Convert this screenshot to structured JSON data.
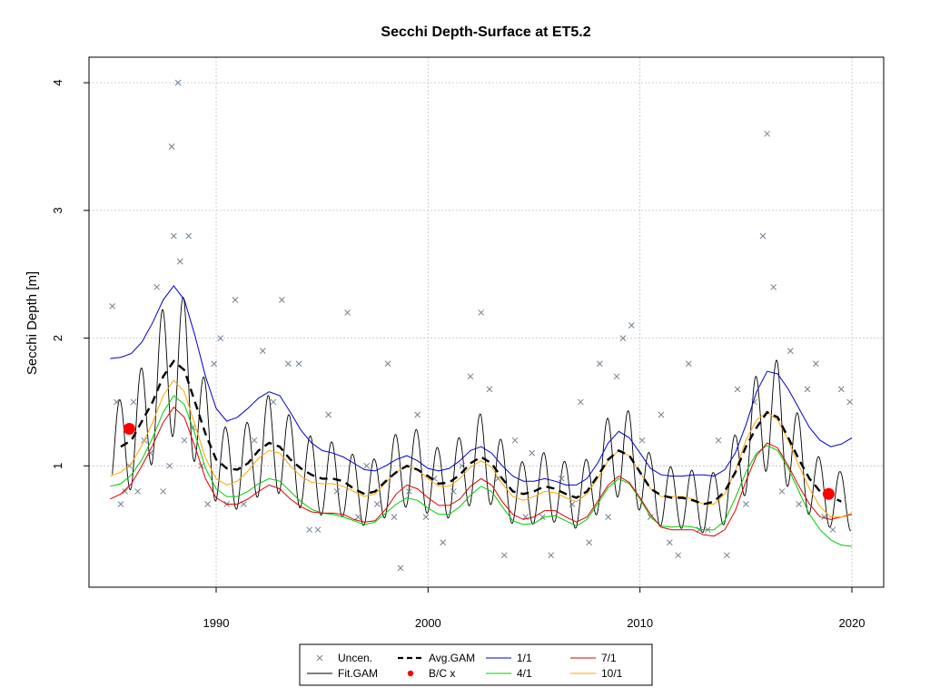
{
  "chart_data": {
    "type": "line",
    "title": "Secchi Depth-Surface at ET5.2",
    "xlabel": "",
    "ylabel": "Secchi Depth [m]",
    "xlim": [
      1984.0,
      2021.5
    ],
    "ylim": [
      0.05,
      4.2
    ],
    "xticks": [
      1990,
      2000,
      2010,
      2020
    ],
    "yticks": [
      1,
      2,
      3,
      4
    ],
    "grid": true,
    "legend_position": "bottom",
    "colors": {
      "uncen": "#708090",
      "fit": "#000000",
      "avg": "#000000",
      "bc": "#ff0000",
      "s1_1": "#0000cc",
      "s4_1": "#00cc00",
      "s7_1": "#dd0000",
      "s10_1": "#ffa500",
      "grid": "#c0c0c0"
    },
    "legend": [
      {
        "key": "uncen",
        "label": "Uncen."
      },
      {
        "key": "avg",
        "label": "Avg.GAM"
      },
      {
        "key": "s1_1",
        "label": "1/1"
      },
      {
        "key": "s7_1",
        "label": "7/1"
      },
      {
        "key": "fit",
        "label": "Fit.GAM"
      },
      {
        "key": "bc",
        "label": "B/C x"
      },
      {
        "key": "s4_1",
        "label": "4/1"
      },
      {
        "key": "s10_1",
        "label": "10/1"
      }
    ],
    "observations": {
      "name": "Uncen.",
      "x": [
        1985.1,
        1985.3,
        1985.5,
        1985.7,
        1985.9,
        1986.1,
        1986.3,
        1986.6,
        1986.9,
        1987.2,
        1987.5,
        1987.8,
        1988.0,
        1988.2,
        1988.5,
        1988.7,
        1988.9,
        1989.3,
        1989.6,
        1989.9,
        1990.2,
        1990.5,
        1990.9,
        1991.3,
        1991.8,
        1992.2,
        1992.7,
        1993.1,
        1993.4,
        1993.9,
        1994.4,
        1994.8,
        1995.3,
        1995.7,
        1996.2,
        1996.7,
        1997.1,
        1997.6,
        1998.1,
        1998.4,
        1998.7,
        1999.1,
        1999.5,
        1999.9,
        2000.3,
        2000.7,
        2001.2,
        2001.6,
        2002.0,
        2002.5,
        2002.9,
        2003.3,
        2003.6,
        2004.1,
        2004.6,
        2004.9,
        2005.4,
        2005.8,
        2006.3,
        2006.8,
        2007.2,
        2007.6,
        2008.1,
        2008.5,
        2008.9,
        2009.2,
        2009.6,
        2010.1,
        2010.5,
        2011.0,
        2011.4,
        2011.8,
        2012.3,
        2012.8,
        2013.2,
        2013.7,
        2014.1,
        2014.6,
        2015.0,
        2015.4,
        2015.8,
        2016.0,
        2016.3,
        2016.7,
        2017.1,
        2017.5,
        2017.9,
        2018.3,
        2018.7,
        2019.1,
        2019.5,
        2019.9
      ],
      "y": [
        2.25,
        1.5,
        0.7,
        0.8,
        1.0,
        1.5,
        0.8,
        1.2,
        1.1,
        2.4,
        0.8,
        1.0,
        2.8,
        4.0,
        1.2,
        2.8,
        1.3,
        1.0,
        0.7,
        1.8,
        2.0,
        0.7,
        2.3,
        0.7,
        1.2,
        1.9,
        1.5,
        2.3,
        1.8,
        1.8,
        0.5,
        0.5,
        1.4,
        0.8,
        2.2,
        0.6,
        1.0,
        0.7,
        1.8,
        0.6,
        0.2,
        0.8,
        1.4,
        0.6,
        0.9,
        0.4,
        0.8,
        1.0,
        1.7,
        2.2,
        1.6,
        0.9,
        0.3,
        1.2,
        0.6,
        1.1,
        0.6,
        0.3,
        0.9,
        0.7,
        1.5,
        0.4,
        1.8,
        0.6,
        1.7,
        2.0,
        2.1,
        1.2,
        0.6,
        1.4,
        0.4,
        0.3,
        1.8,
        0.5,
        0.5,
        1.2,
        0.3,
        1.6,
        0.7,
        1.5,
        2.8,
        3.6,
        2.4,
        0.8,
        1.9,
        0.7,
        1.6,
        1.8,
        0.6,
        0.5,
        1.6,
        1.5
      ]
    },
    "extra_high_obs": [
      {
        "x": 1987.9,
        "y": 3.5
      },
      {
        "x": 1988.3,
        "y": 2.6
      }
    ],
    "avg_gam": {
      "name": "Avg.GAM",
      "x": [
        1985.5,
        1986.0,
        1986.5,
        1987.0,
        1987.5,
        1988.0,
        1988.5,
        1989.0,
        1989.5,
        1990.0,
        1990.5,
        1991.0,
        1991.5,
        1992.0,
        1992.5,
        1993.0,
        1993.5,
        1994.0,
        1994.5,
        1995.0,
        1995.5,
        1996.0,
        1996.5,
        1997.0,
        1997.5,
        1998.0,
        1998.5,
        1999.0,
        1999.5,
        2000.0,
        2000.5,
        2001.0,
        2001.5,
        2002.0,
        2002.5,
        2003.0,
        2003.5,
        2004.0,
        2004.5,
        2005.0,
        2005.5,
        2006.0,
        2006.5,
        2007.0,
        2007.5,
        2008.0,
        2008.5,
        2009.0,
        2009.5,
        2010.0,
        2010.5,
        2011.0,
        2011.5,
        2012.0,
        2012.5,
        2013.0,
        2013.5,
        2014.0,
        2014.5,
        2015.0,
        2015.5,
        2016.0,
        2016.5,
        2017.0,
        2017.5,
        2018.0,
        2018.5,
        2019.0,
        2019.5
      ],
      "y": [
        1.15,
        1.2,
        1.35,
        1.5,
        1.7,
        1.82,
        1.75,
        1.5,
        1.25,
        1.05,
        0.98,
        0.97,
        1.02,
        1.12,
        1.18,
        1.15,
        1.05,
        0.98,
        0.93,
        0.9,
        0.9,
        0.88,
        0.82,
        0.78,
        0.8,
        0.88,
        0.95,
        1.0,
        0.97,
        0.92,
        0.86,
        0.87,
        0.93,
        1.02,
        1.07,
        1.02,
        0.9,
        0.8,
        0.78,
        0.8,
        0.84,
        0.82,
        0.78,
        0.75,
        0.8,
        0.92,
        1.05,
        1.12,
        1.08,
        0.95,
        0.82,
        0.77,
        0.75,
        0.75,
        0.73,
        0.7,
        0.72,
        0.8,
        0.95,
        1.15,
        1.3,
        1.42,
        1.38,
        1.22,
        1.05,
        0.9,
        0.8,
        0.76,
        0.72
      ]
    },
    "bc_points": {
      "name": "B/C x",
      "x": [
        1985.9,
        2018.9
      ],
      "y": [
        1.29,
        0.78
      ]
    },
    "series": [
      {
        "key": "s1_1",
        "name": "1/1",
        "x": [
          1985.0,
          1985.5,
          1986.0,
          1986.5,
          1987.0,
          1987.5,
          1988.0,
          1988.5,
          1989.0,
          1989.5,
          1990.0,
          1990.5,
          1991.0,
          1991.5,
          1992.0,
          1992.5,
          1993.0,
          1993.5,
          1994.0,
          1994.5,
          1995.0,
          1995.5,
          1996.0,
          1996.5,
          1997.0,
          1997.5,
          1998.0,
          1998.5,
          1999.0,
          1999.5,
          2000.0,
          2000.5,
          2001.0,
          2001.5,
          2002.0,
          2002.5,
          2003.0,
          2003.5,
          2004.0,
          2004.5,
          2005.0,
          2005.5,
          2006.0,
          2006.5,
          2007.0,
          2007.5,
          2008.0,
          2008.5,
          2009.0,
          2009.5,
          2010.0,
          2010.5,
          2011.0,
          2011.5,
          2012.0,
          2012.5,
          2013.0,
          2013.5,
          2014.0,
          2014.5,
          2015.0,
          2015.5,
          2016.0,
          2016.5,
          2017.0,
          2017.5,
          2018.0,
          2018.5,
          2019.0,
          2019.5,
          2020.0
        ],
        "y": [
          1.84,
          1.85,
          1.88,
          1.97,
          2.12,
          2.3,
          2.41,
          2.3,
          2.02,
          1.7,
          1.45,
          1.35,
          1.38,
          1.45,
          1.53,
          1.58,
          1.55,
          1.42,
          1.28,
          1.18,
          1.12,
          1.1,
          1.07,
          1.02,
          0.97,
          0.96,
          1.0,
          1.05,
          1.08,
          1.04,
          0.98,
          0.96,
          0.98,
          1.04,
          1.12,
          1.15,
          1.1,
          1.0,
          0.92,
          0.88,
          0.88,
          0.9,
          0.88,
          0.85,
          0.85,
          0.9,
          1.02,
          1.18,
          1.27,
          1.22,
          1.1,
          0.98,
          0.93,
          0.92,
          0.92,
          0.93,
          0.93,
          0.92,
          0.97,
          1.1,
          1.32,
          1.58,
          1.74,
          1.72,
          1.6,
          1.45,
          1.3,
          1.2,
          1.15,
          1.17,
          1.22
        ]
      },
      {
        "key": "s4_1",
        "name": "4/1",
        "x": [
          1985.0,
          1985.5,
          1986.0,
          1986.5,
          1987.0,
          1987.5,
          1988.0,
          1988.5,
          1989.0,
          1989.5,
          1990.0,
          1990.5,
          1991.0,
          1991.5,
          1992.0,
          1992.5,
          1993.0,
          1993.5,
          1994.0,
          1994.5,
          1995.0,
          1995.5,
          1996.0,
          1996.5,
          1997.0,
          1997.5,
          1998.0,
          1998.5,
          1999.0,
          1999.5,
          2000.0,
          2000.5,
          2001.0,
          2001.5,
          2002.0,
          2002.5,
          2003.0,
          2003.5,
          2004.0,
          2004.5,
          2005.0,
          2005.5,
          2006.0,
          2006.5,
          2007.0,
          2007.5,
          2008.0,
          2008.5,
          2009.0,
          2009.5,
          2010.0,
          2010.5,
          2011.0,
          2011.5,
          2012.0,
          2012.5,
          2013.0,
          2013.5,
          2014.0,
          2014.5,
          2015.0,
          2015.5,
          2016.0,
          2016.5,
          2017.0,
          2017.5,
          2018.0,
          2018.5,
          2019.0,
          2019.5,
          2020.0
        ],
        "y": [
          0.84,
          0.86,
          0.93,
          1.05,
          1.22,
          1.42,
          1.55,
          1.48,
          1.25,
          0.98,
          0.82,
          0.76,
          0.76,
          0.8,
          0.86,
          0.9,
          0.88,
          0.8,
          0.72,
          0.66,
          0.63,
          0.62,
          0.6,
          0.57,
          0.54,
          0.56,
          0.63,
          0.7,
          0.75,
          0.73,
          0.67,
          0.62,
          0.62,
          0.68,
          0.77,
          0.84,
          0.8,
          0.68,
          0.57,
          0.54,
          0.55,
          0.6,
          0.61,
          0.57,
          0.53,
          0.58,
          0.7,
          0.83,
          0.9,
          0.86,
          0.74,
          0.6,
          0.53,
          0.52,
          0.53,
          0.52,
          0.5,
          0.5,
          0.57,
          0.75,
          0.95,
          1.1,
          1.16,
          1.12,
          0.98,
          0.8,
          0.62,
          0.5,
          0.42,
          0.38,
          0.37
        ]
      },
      {
        "key": "s7_1",
        "name": "7/1",
        "x": [
          1985.0,
          1985.5,
          1986.0,
          1986.5,
          1987.0,
          1987.5,
          1988.0,
          1988.5,
          1989.0,
          1989.5,
          1990.0,
          1990.5,
          1991.0,
          1991.5,
          1992.0,
          1992.5,
          1993.0,
          1993.5,
          1994.0,
          1994.5,
          1995.0,
          1995.5,
          1996.0,
          1996.5,
          1997.0,
          1997.5,
          1998.0,
          1998.5,
          1999.0,
          1999.5,
          2000.0,
          2000.5,
          2001.0,
          2001.5,
          2002.0,
          2002.5,
          2003.0,
          2003.5,
          2004.0,
          2004.5,
          2005.0,
          2005.5,
          2006.0,
          2006.5,
          2007.0,
          2007.5,
          2008.0,
          2008.5,
          2009.0,
          2009.5,
          2010.0,
          2010.5,
          2011.0,
          2011.5,
          2012.0,
          2012.5,
          2013.0,
          2013.5,
          2014.0,
          2014.5,
          2015.0,
          2015.5,
          2016.0,
          2016.5,
          2017.0,
          2017.5,
          2018.0,
          2018.5,
          2019.0,
          2019.5,
          2020.0
        ],
        "y": [
          0.74,
          0.78,
          0.86,
          1.0,
          1.16,
          1.34,
          1.46,
          1.38,
          1.15,
          0.9,
          0.75,
          0.7,
          0.7,
          0.74,
          0.8,
          0.85,
          0.82,
          0.74,
          0.68,
          0.64,
          0.63,
          0.63,
          0.62,
          0.58,
          0.56,
          0.57,
          0.66,
          0.78,
          0.85,
          0.82,
          0.75,
          0.69,
          0.69,
          0.74,
          0.84,
          0.9,
          0.85,
          0.72,
          0.62,
          0.58,
          0.6,
          0.65,
          0.65,
          0.6,
          0.56,
          0.6,
          0.72,
          0.85,
          0.92,
          0.87,
          0.75,
          0.62,
          0.52,
          0.5,
          0.5,
          0.5,
          0.46,
          0.45,
          0.5,
          0.65,
          0.88,
          1.08,
          1.18,
          1.14,
          1.0,
          0.84,
          0.7,
          0.6,
          0.58,
          0.6,
          0.62
        ]
      },
      {
        "key": "s10_1",
        "name": "10/1",
        "x": [
          1985.0,
          1985.5,
          1986.0,
          1986.5,
          1987.0,
          1987.5,
          1988.0,
          1988.5,
          1989.0,
          1989.5,
          1990.0,
          1990.5,
          1991.0,
          1991.5,
          1992.0,
          1992.5,
          1993.0,
          1993.5,
          1994.0,
          1994.5,
          1995.0,
          1995.5,
          1996.0,
          1996.5,
          1997.0,
          1997.5,
          1998.0,
          1998.5,
          1999.0,
          1999.5,
          2000.0,
          2000.5,
          2001.0,
          2001.5,
          2002.0,
          2002.5,
          2003.0,
          2003.5,
          2004.0,
          2004.5,
          2005.0,
          2005.5,
          2006.0,
          2006.5,
          2007.0,
          2007.5,
          2008.0,
          2008.5,
          2009.0,
          2009.5,
          2010.0,
          2010.5,
          2011.0,
          2011.5,
          2012.0,
          2012.5,
          2013.0,
          2013.5,
          2014.0,
          2014.5,
          2015.0,
          2015.5,
          2016.0,
          2016.5,
          2017.0,
          2017.5,
          2018.0,
          2018.5,
          2019.0,
          2019.5,
          2020.0
        ],
        "y": [
          0.92,
          0.95,
          1.02,
          1.16,
          1.34,
          1.55,
          1.67,
          1.58,
          1.32,
          1.06,
          0.9,
          0.85,
          0.88,
          0.96,
          1.06,
          1.12,
          1.1,
          1.0,
          0.92,
          0.87,
          0.86,
          0.86,
          0.84,
          0.8,
          0.76,
          0.78,
          0.87,
          0.95,
          1.0,
          0.97,
          0.9,
          0.84,
          0.84,
          0.9,
          0.99,
          1.04,
          0.99,
          0.86,
          0.76,
          0.73,
          0.76,
          0.8,
          0.79,
          0.75,
          0.72,
          0.78,
          0.9,
          1.04,
          1.12,
          1.08,
          0.95,
          0.82,
          0.76,
          0.76,
          0.76,
          0.74,
          0.7,
          0.7,
          0.78,
          0.96,
          1.2,
          1.36,
          1.42,
          1.36,
          1.2,
          1.0,
          0.82,
          0.68,
          0.6,
          0.6,
          0.63
        ]
      }
    ],
    "fit_gam": {
      "name": "Fit.GAM",
      "seasonal_amplitude": 0.32
    }
  }
}
